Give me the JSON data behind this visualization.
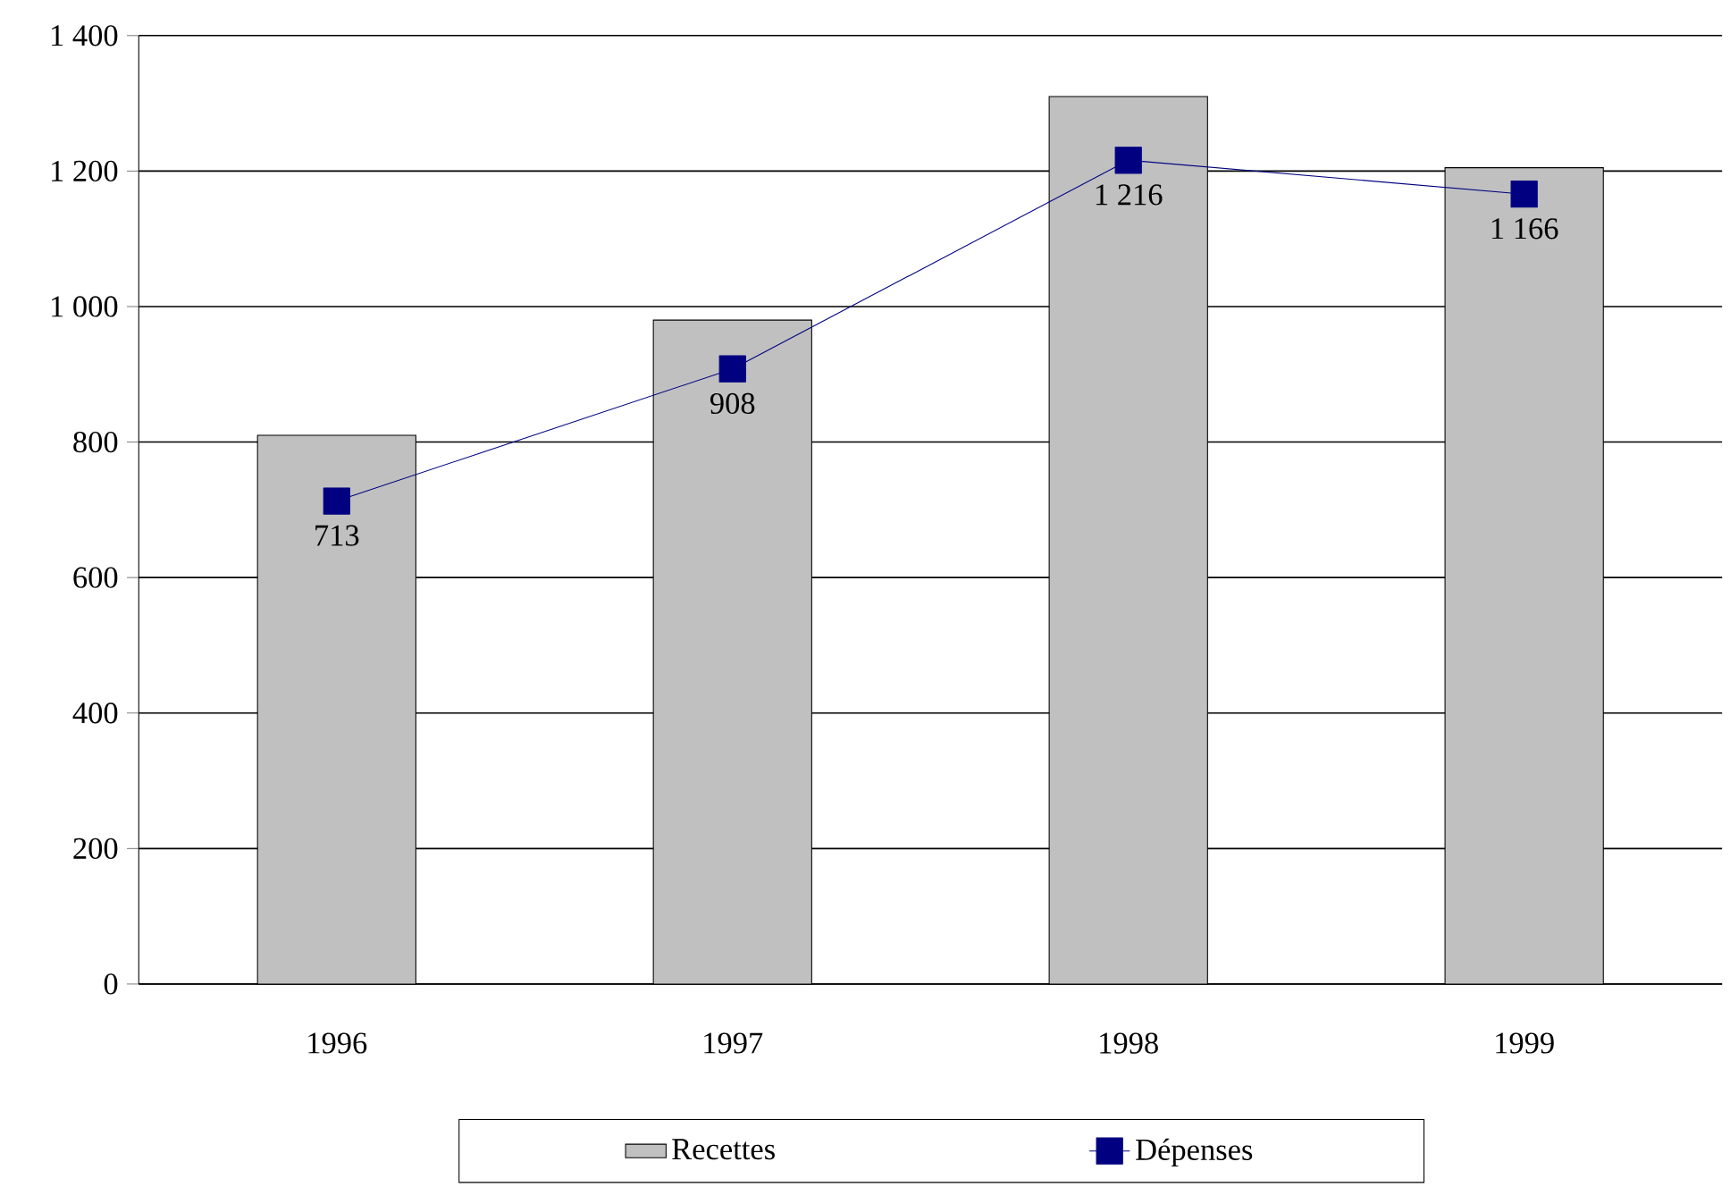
{
  "chart_data": {
    "type": "bar",
    "categories": [
      "1996",
      "1997",
      "1998",
      "1999"
    ],
    "series": [
      {
        "name": "Recettes",
        "color": "#c0c0c0",
        "values": [
          810,
          980,
          1310,
          1205
        ]
      },
      {
        "name": "Dépenses",
        "type": "line",
        "color": "#000080",
        "marker": "square",
        "values": [
          713,
          908,
          1216,
          1166
        ],
        "value_labels": [
          "713",
          "908",
          "1 216",
          "1 166"
        ]
      }
    ],
    "ylim": [
      0,
      1400
    ],
    "yticks": [
      0,
      200,
      400,
      600,
      800,
      {
        "value": 1000,
        "label": "1 000"
      },
      {
        "value": 1200,
        "label": "1 200"
      },
      {
        "value": 1400,
        "label": "1 400"
      }
    ],
    "grid": "y",
    "legend": "bottom"
  }
}
